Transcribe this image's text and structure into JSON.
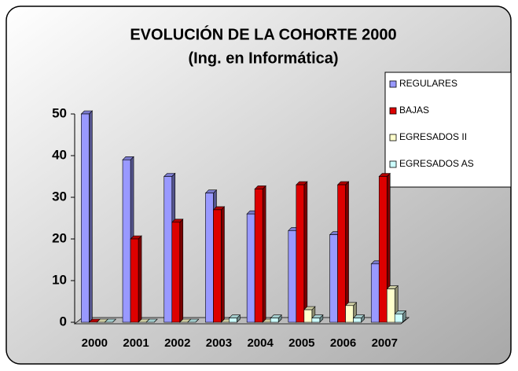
{
  "chart_data": {
    "type": "bar",
    "title": "EVOLUCIÓN DE LA COHORTE 2000",
    "subtitle": "(Ing. en Informática)",
    "categories": [
      "2000",
      "2001",
      "2002",
      "2003",
      "2004",
      "2005",
      "2006",
      "2007"
    ],
    "series": [
      {
        "name": "REGULARES",
        "color": "#9999ff",
        "values": [
          50,
          39,
          35,
          31,
          26,
          22,
          21,
          14
        ]
      },
      {
        "name": "BAJAS",
        "color": "#dd0000",
        "values": [
          0,
          20,
          24,
          27,
          32,
          33,
          33,
          35
        ]
      },
      {
        "name": "EGRESADOS II",
        "color": "#ffffcc",
        "values": [
          0,
          0,
          0,
          0,
          0,
          3,
          4,
          8
        ]
      },
      {
        "name": "EGRESADOS AS",
        "color": "#ccffff",
        "values": [
          0,
          0,
          0,
          1,
          1,
          1,
          1,
          2
        ]
      }
    ],
    "ylim": [
      0,
      50
    ],
    "yticks": [
      0,
      10,
      20,
      30,
      40,
      50
    ],
    "legend": "right"
  }
}
